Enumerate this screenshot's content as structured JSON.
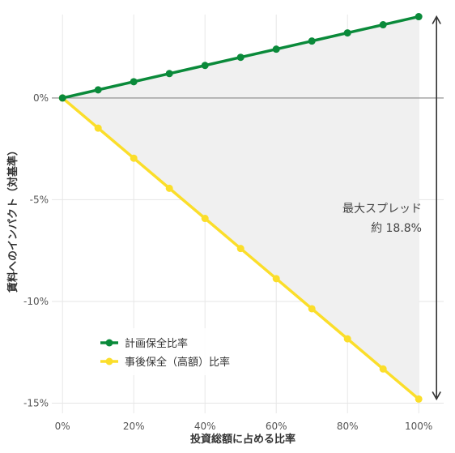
{
  "chart_data": {
    "type": "line",
    "title": "",
    "xlabel": "投資総額に占める比率",
    "ylabel": "賃料へのインパクト（対基準）",
    "x": [
      0,
      10,
      20,
      30,
      40,
      50,
      60,
      70,
      80,
      90,
      100
    ],
    "x_tick_labels": [
      "0%",
      "20%",
      "40%",
      "60%",
      "80%",
      "100%"
    ],
    "x_ticks": [
      0,
      20,
      40,
      60,
      80,
      100
    ],
    "xlim": [
      -3,
      107
    ],
    "y_tick_labels": [
      "0%",
      "-5%",
      "-10%",
      "-15%"
    ],
    "y_ticks": [
      0,
      -5,
      -10,
      -15
    ],
    "ylim": [
      -15.5,
      4.1
    ],
    "series": [
      {
        "name": "計画保全比率",
        "color": "#0a8a3a",
        "values": [
          0,
          0.4,
          0.8,
          1.2,
          1.6,
          2.0,
          2.4,
          2.8,
          3.2,
          3.6,
          4.0
        ]
      },
      {
        "name": "事後保全（高額）比率",
        "color": "#fbde2a",
        "values": [
          0,
          -1.48,
          -2.96,
          -4.44,
          -5.92,
          -7.4,
          -8.88,
          -10.36,
          -11.84,
          -13.32,
          -14.8
        ]
      }
    ],
    "annotation": {
      "line1": "最大スプレッド",
      "line2": "約 18.8%"
    },
    "legend_position": "lower-left",
    "grid": true,
    "fill_between_color": "#f0f0f0",
    "zero_line_color": "#888888",
    "arrow_color": "#333333"
  }
}
